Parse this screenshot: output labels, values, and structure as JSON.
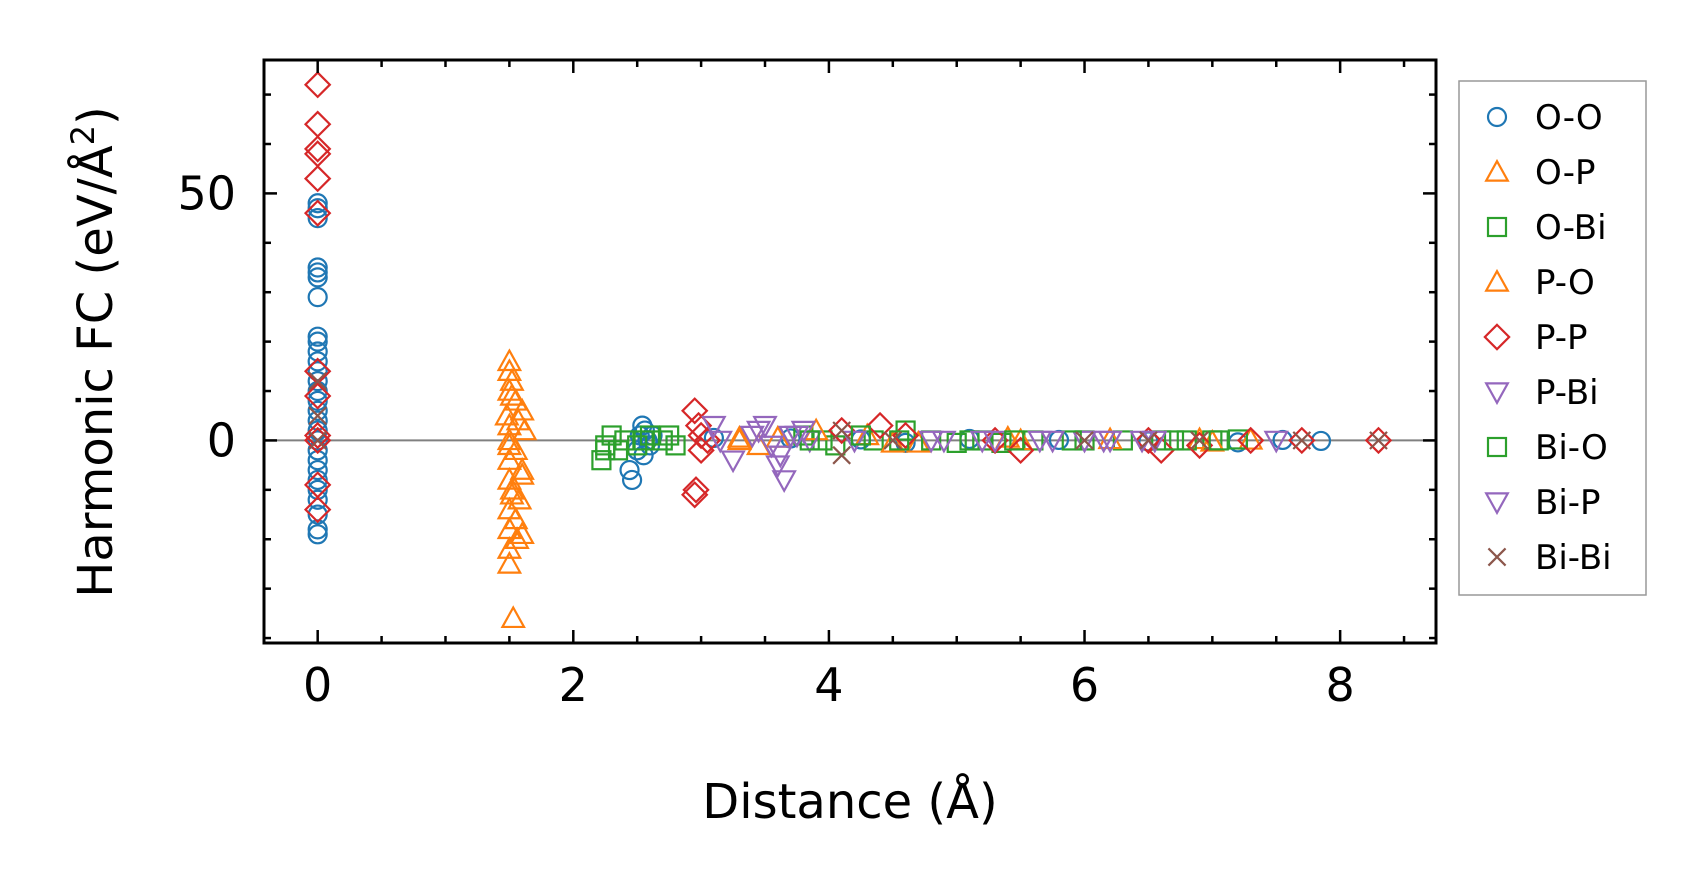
{
  "chart_data": {
    "type": "scatter",
    "xlabel": "Distance (Å)",
    "ylabel_main": "Harmonic FC (eV/Å",
    "ylabel_sup": "2",
    "ylabel_close": ")",
    "xlim": [
      -0.42,
      8.75
    ],
    "ylim": [
      -41,
      77
    ],
    "xticks": [
      0,
      2,
      4,
      6,
      8
    ],
    "xtick_labels": [
      "0",
      "2",
      "4",
      "6",
      "8"
    ],
    "yticks": [
      0,
      50
    ],
    "ytick_labels": [
      "0",
      "50"
    ],
    "x_minor_step": 0.5,
    "y_minor_step": 10,
    "grid": false,
    "zero_line": true,
    "legend_position": "outside-right",
    "series": [
      {
        "name": "O-O",
        "marker": "circle",
        "color": "#1f77b4",
        "points": [
          [
            0,
            45
          ],
          [
            0,
            48
          ],
          [
            0,
            47
          ],
          [
            0,
            35
          ],
          [
            0,
            34
          ],
          [
            0,
            33
          ],
          [
            0,
            29
          ],
          [
            0,
            21
          ],
          [
            0,
            20
          ],
          [
            0,
            18
          ],
          [
            0,
            16
          ],
          [
            0,
            14
          ],
          [
            0,
            12
          ],
          [
            0,
            10
          ],
          [
            0,
            8
          ],
          [
            0,
            6
          ],
          [
            0,
            4
          ],
          [
            0,
            2
          ],
          [
            0,
            0
          ],
          [
            0,
            -2
          ],
          [
            0,
            -4
          ],
          [
            0,
            -6
          ],
          [
            0,
            -8
          ],
          [
            0,
            -10
          ],
          [
            0,
            -12
          ],
          [
            0,
            -15
          ],
          [
            0,
            -18
          ],
          [
            0,
            -19
          ],
          [
            2.44,
            -6
          ],
          [
            2.46,
            -8
          ],
          [
            2.5,
            -2
          ],
          [
            2.52,
            1
          ],
          [
            2.54,
            3
          ],
          [
            2.56,
            2
          ],
          [
            2.58,
            0
          ],
          [
            2.6,
            -1
          ],
          [
            2.62,
            1
          ],
          [
            2.55,
            -3
          ],
          [
            3.1,
            0.5
          ],
          [
            3.7,
            0.4
          ],
          [
            4.25,
            0.2
          ],
          [
            4.6,
            -0.5
          ],
          [
            5.1,
            0.3
          ],
          [
            5.8,
            0.1
          ],
          [
            6.5,
            -0.2
          ],
          [
            7.2,
            -0.4
          ],
          [
            7.55,
            0.1
          ],
          [
            7.85,
            -0.1
          ]
        ]
      },
      {
        "name": "O-P",
        "marker": "triangle-up",
        "color": "#ff7f0e",
        "points": [
          [
            1.5,
            16
          ],
          [
            1.52,
            12
          ],
          [
            1.5,
            10
          ],
          [
            1.55,
            8
          ],
          [
            1.6,
            6
          ],
          [
            1.48,
            5
          ],
          [
            1.5,
            3
          ],
          [
            1.62,
            2
          ],
          [
            1.5,
            0
          ],
          [
            1.55,
            -2
          ],
          [
            1.5,
            -4
          ],
          [
            1.6,
            -6
          ],
          [
            1.5,
            -8
          ],
          [
            1.52,
            -10
          ],
          [
            1.58,
            -12
          ],
          [
            1.5,
            -14
          ],
          [
            1.55,
            -16
          ],
          [
            1.5,
            -18
          ],
          [
            1.6,
            -19
          ],
          [
            1.5,
            -22
          ],
          [
            1.5,
            -25
          ],
          [
            1.53,
            -36
          ],
          [
            3.3,
            0
          ],
          [
            3.45,
            -1
          ],
          [
            3.6,
            0.5
          ],
          [
            4.3,
            1
          ],
          [
            4.7,
            -0.5
          ],
          [
            5.4,
            0.5
          ],
          [
            6.9,
            0.2
          ],
          [
            7.3,
            0.1
          ]
        ]
      },
      {
        "name": "O-Bi",
        "marker": "square",
        "color": "#2ca02c",
        "points": [
          [
            2.22,
            -4
          ],
          [
            2.25,
            -1
          ],
          [
            2.3,
            1
          ],
          [
            2.35,
            -2
          ],
          [
            2.4,
            0
          ],
          [
            2.5,
            -1
          ],
          [
            2.6,
            1
          ],
          [
            2.7,
            0
          ],
          [
            2.8,
            -1
          ],
          [
            3.8,
            1
          ],
          [
            3.95,
            0
          ],
          [
            4.05,
            -1
          ],
          [
            4.35,
            0
          ],
          [
            4.6,
            2
          ],
          [
            4.8,
            0
          ],
          [
            5.0,
            -0.5
          ],
          [
            5.2,
            0
          ],
          [
            5.35,
            -0.5
          ],
          [
            5.6,
            0
          ],
          [
            6.0,
            0
          ],
          [
            6.3,
            0
          ],
          [
            6.6,
            0
          ],
          [
            6.8,
            0
          ],
          [
            7.0,
            0
          ],
          [
            7.2,
            0.2
          ]
        ]
      },
      {
        "name": "P-O",
        "marker": "triangle-up",
        "color": "#ff7f0e",
        "points": [
          [
            1.5,
            14
          ],
          [
            1.52,
            9
          ],
          [
            1.57,
            4
          ],
          [
            1.5,
            -1
          ],
          [
            1.6,
            -7
          ],
          [
            1.52,
            -11
          ],
          [
            1.56,
            -20
          ],
          [
            3.3,
            0.5
          ],
          [
            3.9,
            2
          ],
          [
            4.5,
            -0.5
          ],
          [
            5.5,
            0
          ],
          [
            6.2,
            0.2
          ],
          [
            7.0,
            -0.3
          ]
        ]
      },
      {
        "name": "P-P",
        "marker": "diamond",
        "color": "#d62728",
        "points": [
          [
            0,
            72
          ],
          [
            0,
            64
          ],
          [
            0,
            59
          ],
          [
            0,
            58
          ],
          [
            0,
            53
          ],
          [
            0,
            46
          ],
          [
            0,
            14
          ],
          [
            0,
            9
          ],
          [
            0,
            1
          ],
          [
            0,
            0
          ],
          [
            0,
            -9
          ],
          [
            0,
            -14
          ],
          [
            2.95,
            6
          ],
          [
            2.98,
            3
          ],
          [
            3.0,
            1
          ],
          [
            3.05,
            0
          ],
          [
            3.0,
            -2
          ],
          [
            2.96,
            -10
          ],
          [
            2.95,
            -11
          ],
          [
            4.1,
            2
          ],
          [
            4.4,
            3
          ],
          [
            4.6,
            1
          ],
          [
            5.3,
            0
          ],
          [
            5.5,
            -2
          ],
          [
            6.5,
            0
          ],
          [
            6.6,
            -2
          ],
          [
            6.9,
            -1
          ],
          [
            7.3,
            0
          ],
          [
            7.7,
            0
          ],
          [
            8.3,
            0
          ]
        ]
      },
      {
        "name": "P-Bi",
        "marker": "triangle-down",
        "color": "#9467bd",
        "points": [
          [
            3.1,
            3
          ],
          [
            3.25,
            -4
          ],
          [
            3.4,
            1
          ],
          [
            3.5,
            3
          ],
          [
            3.55,
            -1
          ],
          [
            3.6,
            -5
          ],
          [
            3.65,
            -8
          ],
          [
            3.7,
            1
          ],
          [
            3.8,
            2
          ],
          [
            3.85,
            0
          ],
          [
            4.2,
            0
          ],
          [
            4.9,
            0
          ],
          [
            5.3,
            0
          ],
          [
            5.65,
            0
          ],
          [
            6.0,
            0
          ],
          [
            6.2,
            0
          ],
          [
            6.45,
            0
          ]
        ]
      },
      {
        "name": "Bi-O",
        "marker": "square",
        "color": "#2ca02c",
        "points": [
          [
            2.25,
            -2
          ],
          [
            2.55,
            0
          ],
          [
            2.75,
            1
          ],
          [
            3.85,
            0
          ],
          [
            4.25,
            1
          ],
          [
            4.55,
            0
          ],
          [
            5.1,
            0
          ],
          [
            5.45,
            0
          ],
          [
            5.9,
            0
          ],
          [
            6.7,
            0
          ],
          [
            7.05,
            0
          ]
        ]
      },
      {
        "name": "Bi-P",
        "marker": "triangle-down",
        "color": "#9467bd",
        "points": [
          [
            3.15,
            0
          ],
          [
            3.45,
            2
          ],
          [
            3.62,
            -3
          ],
          [
            3.75,
            1
          ],
          [
            4.8,
            0
          ],
          [
            5.2,
            0
          ],
          [
            5.75,
            0
          ],
          [
            6.15,
            0
          ],
          [
            6.55,
            0
          ],
          [
            7.5,
            0
          ]
        ]
      },
      {
        "name": "Bi-Bi",
        "marker": "x",
        "color": "#8c564b",
        "points": [
          [
            0,
            12
          ],
          [
            0,
            5
          ],
          [
            0,
            0
          ],
          [
            4.1,
            2
          ],
          [
            4.1,
            -3
          ],
          [
            4.5,
            0
          ],
          [
            6.0,
            0
          ],
          [
            6.5,
            0
          ],
          [
            6.9,
            0
          ],
          [
            7.7,
            0
          ],
          [
            8.3,
            0
          ]
        ]
      }
    ]
  }
}
